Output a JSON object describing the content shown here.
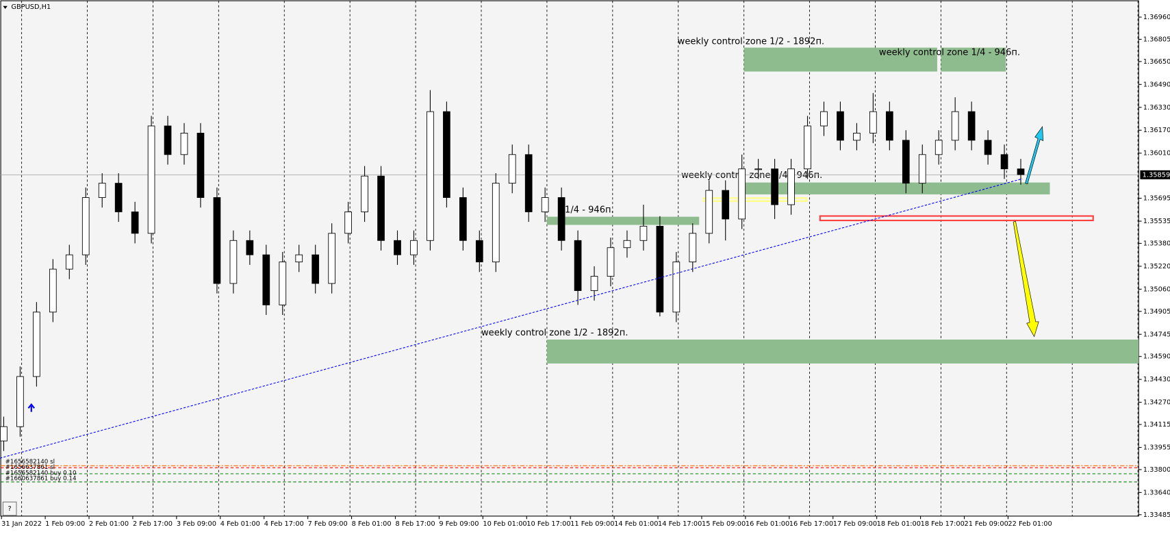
{
  "chart_data": {
    "type": "candlestick",
    "title": "GBPUSD,H1",
    "x_labels": [
      "31 Jan 2022",
      "1 Feb 09:00",
      "2 Feb 01:00",
      "2 Feb 17:00",
      "3 Feb 09:00",
      "4 Feb 01:00",
      "4 Feb 17:00",
      "7 Feb 09:00",
      "8 Feb 01:00",
      "8 Feb 17:00",
      "9 Feb 09:00",
      "10 Feb 01:00",
      "10 Feb 17:00",
      "11 Feb 09:00",
      "14 Feb 01:00",
      "14 Feb 17:00",
      "15 Feb 09:00",
      "16 Feb 01:00",
      "16 Feb 17:00",
      "17 Feb 09:00",
      "18 Feb 01:00",
      "18 Feb 17:00",
      "21 Feb 09:00",
      "22 Feb 01:00"
    ],
    "open": [
      1.34,
      1.341,
      1.3445,
      1.349,
      1.352,
      1.353,
      1.357,
      1.358,
      1.356,
      1.3545,
      1.362,
      1.36,
      1.3615,
      1.357,
      1.351,
      1.354,
      1.353,
      1.3495,
      1.3525,
      1.353,
      1.351,
      1.3545,
      1.356,
      1.3585,
      1.354,
      1.353,
      1.354,
      1.363,
      1.357,
      1.354,
      1.3525,
      1.358,
      1.36,
      1.356,
      1.357,
      1.354,
      1.3505,
      1.3515,
      1.3535,
      1.354,
      1.355,
      1.349,
      1.3525,
      1.3545,
      1.3575,
      1.3555,
      1.359,
      1.359,
      1.3565,
      1.359,
      1.362,
      1.363,
      1.361,
      1.3615,
      1.363,
      1.361,
      1.358,
      1.36,
      1.361,
      1.363,
      1.361,
      1.36,
      1.359
    ],
    "high": [
      1.3417,
      1.3452,
      1.3497,
      1.3527,
      1.3537,
      1.3577,
      1.3587,
      1.3587,
      1.3567,
      1.3627,
      1.3627,
      1.3622,
      1.3622,
      1.3577,
      1.3547,
      1.3547,
      1.3537,
      1.3532,
      1.3537,
      1.3537,
      1.3552,
      1.3567,
      1.3592,
      1.3592,
      1.3547,
      1.3547,
      1.3645,
      1.3637,
      1.3577,
      1.3547,
      1.3587,
      1.3607,
      1.3607,
      1.3577,
      1.3577,
      1.3547,
      1.3522,
      1.3542,
      1.3547,
      1.3565,
      1.3557,
      1.3532,
      1.3552,
      1.3582,
      1.3582,
      1.36,
      1.3597,
      1.3597,
      1.3597,
      1.3627,
      1.3637,
      1.3637,
      1.3622,
      1.3643,
      1.3637,
      1.3617,
      1.3607,
      1.3617,
      1.364,
      1.3637,
      1.3617,
      1.3607,
      1.3597
    ],
    "low": [
      1.3393,
      1.3403,
      1.3438,
      1.3483,
      1.3513,
      1.3523,
      1.3563,
      1.3553,
      1.3538,
      1.3538,
      1.3593,
      1.3593,
      1.3563,
      1.3503,
      1.3503,
      1.3523,
      1.3488,
      1.3488,
      1.3518,
      1.3503,
      1.3503,
      1.3538,
      1.3553,
      1.3533,
      1.3523,
      1.3523,
      1.3533,
      1.3563,
      1.3533,
      1.3518,
      1.3518,
      1.3573,
      1.3553,
      1.3553,
      1.3533,
      1.3495,
      1.3498,
      1.3508,
      1.3528,
      1.3533,
      1.3487,
      1.3483,
      1.3518,
      1.3538,
      1.354,
      1.3548,
      1.3583,
      1.3555,
      1.3558,
      1.3583,
      1.3613,
      1.3603,
      1.3603,
      1.3608,
      1.3603,
      1.3573,
      1.3573,
      1.3593,
      1.3603,
      1.3603,
      1.3593,
      1.3583,
      1.3579
    ],
    "close": [
      1.341,
      1.3445,
      1.349,
      1.352,
      1.353,
      1.357,
      1.358,
      1.356,
      1.3545,
      1.362,
      1.36,
      1.3615,
      1.357,
      1.351,
      1.354,
      1.353,
      1.3495,
      1.3525,
      1.353,
      1.351,
      1.3545,
      1.356,
      1.3585,
      1.354,
      1.353,
      1.354,
      1.363,
      1.357,
      1.354,
      1.3525,
      1.358,
      1.36,
      1.356,
      1.357,
      1.354,
      1.3505,
      1.3515,
      1.3535,
      1.354,
      1.355,
      1.349,
      1.3525,
      1.3545,
      1.3575,
      1.3555,
      1.359,
      1.359,
      1.3565,
      1.359,
      1.362,
      1.363,
      1.361,
      1.3615,
      1.363,
      1.361,
      1.358,
      1.36,
      1.361,
      1.363,
      1.361,
      1.36,
      1.359,
      1.3586
    ],
    "ylim": [
      1.33475,
      1.37064
    ],
    "yticks": [
      {
        "value": 1.3696,
        "label": "1.36960"
      },
      1.36805,
      {
        "value": 1.3665,
        "label": "1.36650"
      },
      {
        "value": 1.3649,
        "label": "1.36490"
      },
      {
        "value": 1.3633,
        "label": "1.36330"
      },
      {
        "value": 1.3617,
        "label": "1.36170"
      },
      {
        "value": 1.3601,
        "label": "1.36010"
      },
      1.35695,
      1.35535,
      {
        "value": 1.3538,
        "label": "1.35380"
      },
      {
        "value": 1.3522,
        "label": "1.35220"
      },
      {
        "value": 1.3506,
        "label": "1.35060"
      },
      1.34905,
      1.34745,
      {
        "value": 1.3459,
        "label": "1.34590"
      },
      {
        "value": 1.3443,
        "label": "1.34430"
      },
      {
        "value": 1.3427,
        "label": "1.34270"
      },
      1.34115,
      1.33955,
      {
        "value": 1.338,
        "label": "1.33800"
      },
      {
        "value": 1.3364,
        "label": "1.33640"
      },
      1.33485
    ],
    "current_price": 1.35859,
    "current_price_label": "1.35859",
    "bull_color": "#ffffff",
    "bear_color": "#000000",
    "zone_color": "#8fbc8f",
    "zones": [
      {
        "label": "weekly control zone  1/2 - 1892п.",
        "y": [
          1.3658,
          1.36747
        ]
      },
      {
        "label": "weekly control zone 1/4 - 946п.",
        "y": [
          1.3658,
          1.36747
        ]
      },
      {
        "label": "weekly control zone 1/4 - 946п.",
        "y": [
          1.35722,
          1.35805
        ]
      },
      {
        "label": "1/4 - 946п.",
        "y": [
          1.35509,
          1.35566
        ]
      },
      {
        "label": "weekly control zone  1/2 - 1892п.",
        "y": [
          1.34541,
          1.34708
        ]
      }
    ],
    "levels": [
      {
        "y": [
          1.35675,
          1.35696
        ],
        "color": "#ffff80"
      },
      {
        "y": [
          1.3554,
          1.35571
        ],
        "color": "#ff4040"
      }
    ],
    "trendline": [
      1.3388,
      1.35831
    ],
    "order_lines": [
      {
        "label": "#1656582140 sl",
        "value": 1.33827,
        "color": "#ff6a00"
      },
      {
        "label": "#1656637861 sl",
        "value": 1.33813,
        "color": "#ff0000"
      },
      {
        "label": "#1656582140 buy 0.10",
        "value": 1.33771,
        "color": "#008000"
      },
      {
        "label": "#1660637861 buy 0.14",
        "value": 1.33714,
        "color": "#008000"
      }
    ]
  }
}
